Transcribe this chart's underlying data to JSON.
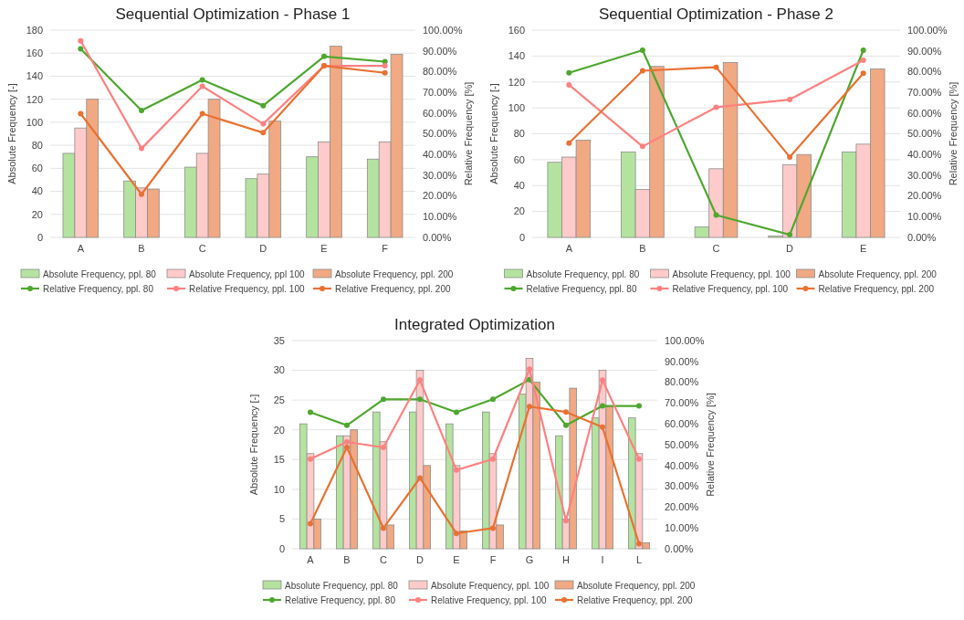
{
  "chart_data": [
    {
      "type": "bar",
      "title": "Sequential Optimization - Phase 1",
      "ylabel": "Absolute Frequency [-]",
      "y2label": "Relative Frequency [%]",
      "categories": [
        "A",
        "B",
        "C",
        "D",
        "E",
        "F"
      ],
      "ylim": [
        0,
        180
      ],
      "yticks": [
        0,
        20,
        40,
        60,
        80,
        100,
        120,
        140,
        160,
        180
      ],
      "y2lim": [
        0,
        100
      ],
      "y2ticks": [
        {
          "value": 0,
          "label": "0.00%"
        },
        {
          "value": 10,
          "label": "10.00%"
        },
        {
          "value": 20,
          "label": "20.00%"
        },
        {
          "value": 30,
          "label": "30.00%"
        },
        {
          "value": 40,
          "label": "40.00%"
        },
        {
          "value": 50,
          "label": "50.00%"
        },
        {
          "value": 60,
          "label": "60.00%"
        },
        {
          "value": 70,
          "label": "70.00%"
        },
        {
          "value": 80,
          "label": "80.00%"
        },
        {
          "value": 90,
          "label": "90.00%"
        },
        {
          "value": 100,
          "label": "100.00%"
        }
      ],
      "grid": "y",
      "legend": "bottom",
      "marker": "circle",
      "series": [
        {
          "name": "Absolute Frequency, ppl. 80",
          "color": "#b4e3a0",
          "values": [
            73,
            49,
            61,
            51,
            70,
            68
          ]
        },
        {
          "name": "Absolute Frequency, ppl 100",
          "color": "#ffcaca",
          "values": [
            95,
            43,
            73,
            55,
            83,
            83
          ]
        },
        {
          "name": "Absolute Frequency, ppl. 200",
          "color": "#f0a983",
          "values": [
            120,
            42,
            120,
            101,
            166,
            159
          ]
        },
        {
          "name": "Relative Frequency, ppl. 80",
          "type": "line",
          "axis": "y2",
          "color": "#4ea72e",
          "values": [
            91.0,
            61.2,
            76.0,
            63.6,
            87.3,
            84.8
          ]
        },
        {
          "name": "Relative Frequency, ppl. 100",
          "type": "line",
          "axis": "y2",
          "color": "#ff8080",
          "values": [
            94.8,
            42.9,
            72.9,
            54.8,
            82.8,
            82.8
          ]
        },
        {
          "name": "Relative Frequency, ppl. 200",
          "type": "line",
          "axis": "y2",
          "color": "#e97132",
          "values": [
            59.7,
            20.8,
            59.7,
            50.5,
            82.8,
            79.4
          ]
        }
      ]
    },
    {
      "type": "bar",
      "title": "Sequential Optimization - Phase 2",
      "ylabel": "Absolute Frequency [-]",
      "y2label": "Relative Frequency [%]",
      "categories": [
        "A",
        "B",
        "C",
        "D",
        "E"
      ],
      "ylim": [
        0,
        160
      ],
      "yticks": [
        0,
        20,
        40,
        60,
        80,
        100,
        120,
        140,
        160
      ],
      "y2lim": [
        0,
        100
      ],
      "y2ticks": [
        {
          "value": 0,
          "label": "0.00%"
        },
        {
          "value": 10,
          "label": "10.00%"
        },
        {
          "value": 20,
          "label": "20.00%"
        },
        {
          "value": 30,
          "label": "30.00%"
        },
        {
          "value": 40,
          "label": "40.00%"
        },
        {
          "value": 50,
          "label": "50.00%"
        },
        {
          "value": 60,
          "label": "60.00%"
        },
        {
          "value": 70,
          "label": "70.00%"
        },
        {
          "value": 80,
          "label": "80.00%"
        },
        {
          "value": 90,
          "label": "90.00%"
        },
        {
          "value": 100,
          "label": "100.00%"
        }
      ],
      "grid": "y",
      "legend": "bottom",
      "marker": "circle",
      "series": [
        {
          "name": "Absolute Frequency, ppl. 80",
          "color": "#b4e3a0",
          "values": [
            58,
            66,
            8,
            1,
            66
          ]
        },
        {
          "name": "Absolute Frequency, ppl. 100",
          "color": "#ffcaca",
          "values": [
            62,
            37,
            53,
            56,
            72
          ]
        },
        {
          "name": "Absolute Frequency, ppl. 200",
          "color": "#f0a983",
          "values": [
            75,
            132,
            135,
            64,
            130
          ]
        },
        {
          "name": "Relative Frequency, ppl. 80",
          "type": "line",
          "axis": "y2",
          "color": "#4ea72e",
          "values": [
            79.4,
            90.3,
            10.8,
            1.3,
            90.3
          ]
        },
        {
          "name": "Relative Frequency, ppl. 100",
          "type": "line",
          "axis": "y2",
          "color": "#ff8080",
          "values": [
            73.6,
            43.9,
            62.8,
            66.5,
            85.5
          ]
        },
        {
          "name": "Relative Frequency, ppl. 200",
          "type": "line",
          "axis": "y2",
          "color": "#e97132",
          "values": [
            45.5,
            80.4,
            82.1,
            38.8,
            79.2
          ]
        }
      ]
    },
    {
      "type": "bar",
      "title": "Integrated Optimization",
      "ylabel": "Absolute Frequency [-]",
      "y2label": "Relative Frequency [%]",
      "categories": [
        "A",
        "B",
        "C",
        "D",
        "E",
        "F",
        "G",
        "H",
        "I",
        "L"
      ],
      "ylim": [
        0,
        35
      ],
      "yticks": [
        0,
        5,
        10,
        15,
        20,
        25,
        30,
        35
      ],
      "y2lim": [
        0,
        100
      ],
      "y2ticks": [
        {
          "value": 0,
          "label": "0.00%"
        },
        {
          "value": 10,
          "label": "10.00%"
        },
        {
          "value": 20,
          "label": "20.00%"
        },
        {
          "value": 30,
          "label": "30.00%"
        },
        {
          "value": 40,
          "label": "40.00%"
        },
        {
          "value": 50,
          "label": "50.00%"
        },
        {
          "value": 60,
          "label": "60.00%"
        },
        {
          "value": 70,
          "label": "70.00%"
        },
        {
          "value": 80,
          "label": "80.00%"
        },
        {
          "value": 90,
          "label": "90.00%"
        },
        {
          "value": 100,
          "label": "100.00%"
        }
      ],
      "grid": "y",
      "legend": "bottom",
      "marker": "circle",
      "series": [
        {
          "name": "Absolute Frequency, ppl. 80",
          "color": "#b4e3a0",
          "values": [
            21,
            19,
            23,
            23,
            21,
            23,
            26,
            19,
            22,
            22
          ]
        },
        {
          "name": "Absolute Frequency, ppl. 100",
          "color": "#ffcaca",
          "values": [
            16,
            19,
            18,
            30,
            14,
            16,
            32,
            5,
            30,
            16
          ]
        },
        {
          "name": "Absolute Frequency, ppl. 200",
          "color": "#f0a983",
          "values": [
            5,
            20,
            4,
            14,
            3,
            4,
            28,
            27,
            24,
            1
          ]
        },
        {
          "name": "Relative Frequency, ppl. 80",
          "type": "line",
          "axis": "y2",
          "color": "#4ea72e",
          "values": [
            65.6,
            59.3,
            71.8,
            71.8,
            65.6,
            71.8,
            81.2,
            59.3,
            68.6,
            68.6
          ]
        },
        {
          "name": "Relative Frequency, ppl. 100",
          "type": "line",
          "axis": "y2",
          "color": "#ff8080",
          "values": [
            43.1,
            51.3,
            48.7,
            81.0,
            37.8,
            43.1,
            86.3,
            13.5,
            81.0,
            43.1
          ]
        },
        {
          "name": "Relative Frequency, ppl. 200",
          "type": "line",
          "axis": "y2",
          "color": "#e97132",
          "values": [
            12.1,
            48.7,
            9.9,
            34.0,
            7.4,
            9.9,
            68.3,
            65.7,
            58.4,
            2.4
          ]
        }
      ]
    }
  ]
}
